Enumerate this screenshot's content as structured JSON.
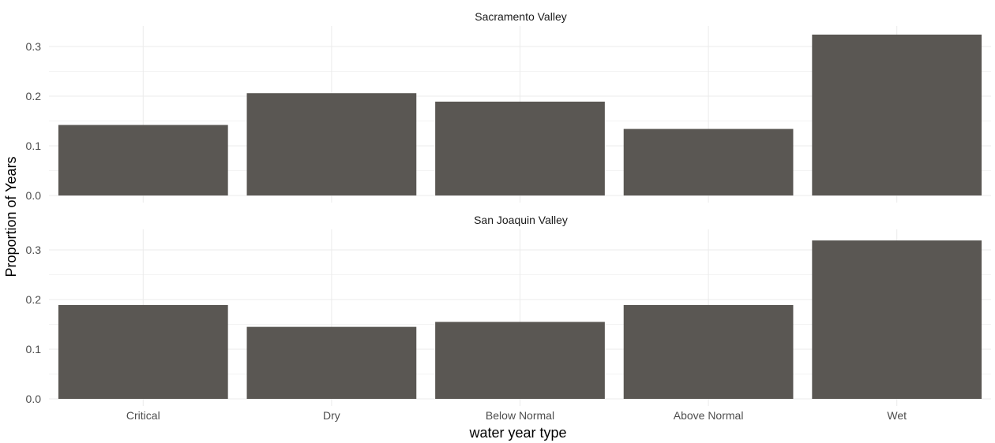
{
  "chart_data": {
    "type": "bar",
    "xlabel": "water year type",
    "ylabel": "Proportion of Years",
    "categories": [
      "Critical",
      "Dry",
      "Below Normal",
      "Above Normal",
      "Wet"
    ],
    "ylim": [
      0,
      0.33
    ],
    "yticks": [
      0.0,
      0.1,
      0.2,
      0.3
    ],
    "ytick_labels": [
      "0.0",
      "0.1",
      "0.2",
      "0.3"
    ],
    "grid": true,
    "legend": "none",
    "bar_color": "#5a5753",
    "facets": [
      {
        "title": "Sacramento Valley",
        "values": [
          0.142,
          0.206,
          0.189,
          0.134,
          0.324
        ]
      },
      {
        "title": "San Joaquin Valley",
        "values": [
          0.189,
          0.145,
          0.155,
          0.189,
          0.319
        ]
      }
    ]
  }
}
